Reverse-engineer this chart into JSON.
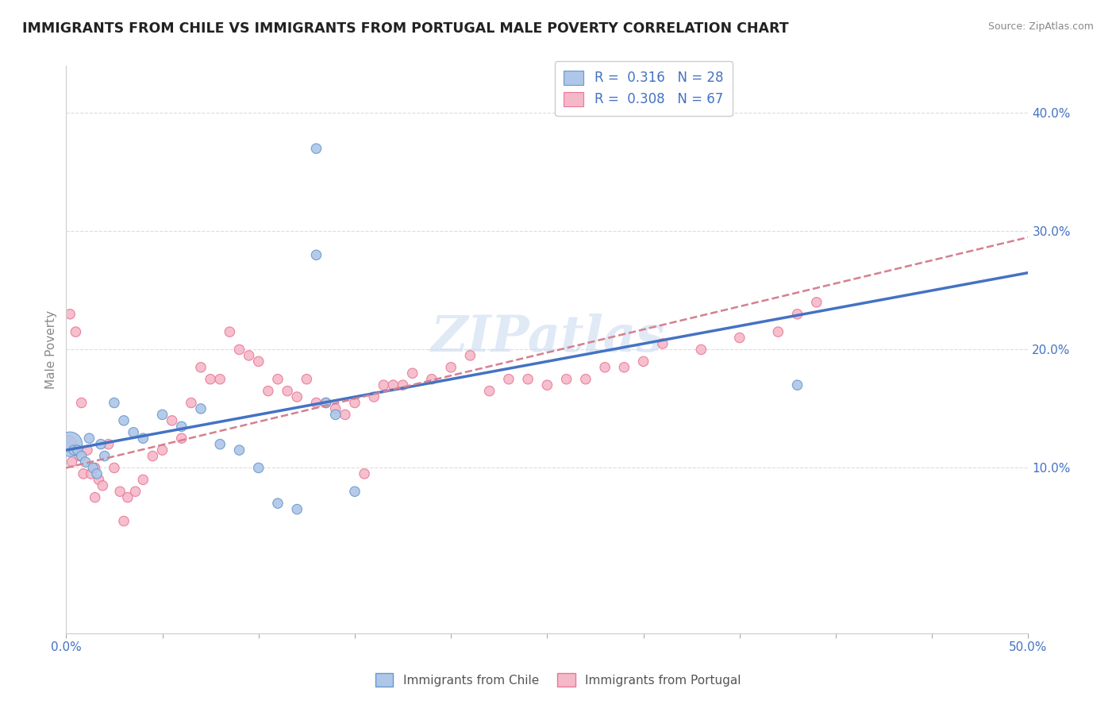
{
  "title": "IMMIGRANTS FROM CHILE VS IMMIGRANTS FROM PORTUGAL MALE POVERTY CORRELATION CHART",
  "source": "Source: ZipAtlas.com",
  "ylabel": "Male Poverty",
  "xlim": [
    0.0,
    0.5
  ],
  "ylim": [
    -0.04,
    0.44
  ],
  "yticks_right": [
    0.1,
    0.2,
    0.3,
    0.4
  ],
  "ytick_labels_right": [
    "10.0%",
    "20.0%",
    "30.0%",
    "40.0%"
  ],
  "grid_yticks": [
    0.1,
    0.2,
    0.3,
    0.4
  ],
  "chile_color": "#aec6e8",
  "chile_edge": "#6699cc",
  "portugal_color": "#f5b8c8",
  "portugal_edge": "#e87898",
  "trendline_chile_color": "#4472c4",
  "trendline_portugal_color": "#d48090",
  "R_chile": 0.316,
  "N_chile": 28,
  "R_portugal": 0.308,
  "N_portugal": 67,
  "watermark": "ZIPatlas",
  "chile_x": [
    0.002,
    0.004,
    0.006,
    0.008,
    0.01,
    0.012,
    0.014,
    0.016,
    0.018,
    0.02,
    0.025,
    0.03,
    0.035,
    0.04,
    0.05,
    0.06,
    0.07,
    0.08,
    0.09,
    0.1,
    0.11,
    0.12,
    0.13,
    0.13,
    0.135,
    0.14,
    0.15,
    0.38
  ],
  "chile_y": [
    0.12,
    0.115,
    0.115,
    0.11,
    0.105,
    0.125,
    0.1,
    0.095,
    0.12,
    0.11,
    0.155,
    0.14,
    0.13,
    0.125,
    0.145,
    0.135,
    0.15,
    0.12,
    0.115,
    0.1,
    0.07,
    0.065,
    0.28,
    0.37,
    0.155,
    0.145,
    0.08,
    0.17
  ],
  "chile_size": [
    500,
    80,
    80,
    80,
    80,
    80,
    80,
    80,
    80,
    80,
    80,
    80,
    80,
    80,
    80,
    80,
    80,
    80,
    80,
    80,
    80,
    80,
    80,
    80,
    80,
    80,
    80,
    80
  ],
  "portugal_x": [
    0.001,
    0.003,
    0.005,
    0.007,
    0.009,
    0.011,
    0.013,
    0.015,
    0.017,
    0.019,
    0.022,
    0.025,
    0.028,
    0.032,
    0.036,
    0.04,
    0.045,
    0.05,
    0.055,
    0.06,
    0.065,
    0.07,
    0.075,
    0.08,
    0.085,
    0.09,
    0.095,
    0.1,
    0.105,
    0.11,
    0.115,
    0.12,
    0.125,
    0.13,
    0.135,
    0.14,
    0.145,
    0.15,
    0.155,
    0.16,
    0.165,
    0.17,
    0.175,
    0.18,
    0.19,
    0.2,
    0.21,
    0.22,
    0.23,
    0.24,
    0.25,
    0.26,
    0.27,
    0.28,
    0.29,
    0.3,
    0.31,
    0.33,
    0.35,
    0.37,
    0.38,
    0.39,
    0.002,
    0.005,
    0.008,
    0.015,
    0.03
  ],
  "portugal_y": [
    0.12,
    0.105,
    0.115,
    0.11,
    0.095,
    0.115,
    0.095,
    0.1,
    0.09,
    0.085,
    0.12,
    0.1,
    0.08,
    0.075,
    0.08,
    0.09,
    0.11,
    0.115,
    0.14,
    0.125,
    0.155,
    0.185,
    0.175,
    0.175,
    0.215,
    0.2,
    0.195,
    0.19,
    0.165,
    0.175,
    0.165,
    0.16,
    0.175,
    0.155,
    0.155,
    0.15,
    0.145,
    0.155,
    0.095,
    0.16,
    0.17,
    0.17,
    0.17,
    0.18,
    0.175,
    0.185,
    0.195,
    0.165,
    0.175,
    0.175,
    0.17,
    0.175,
    0.175,
    0.185,
    0.185,
    0.19,
    0.205,
    0.2,
    0.21,
    0.215,
    0.23,
    0.24,
    0.23,
    0.215,
    0.155,
    0.075,
    0.055
  ],
  "portugal_size": [
    250,
    80,
    80,
    80,
    80,
    80,
    80,
    80,
    80,
    80,
    80,
    80,
    80,
    80,
    80,
    80,
    80,
    80,
    80,
    80,
    80,
    80,
    80,
    80,
    80,
    80,
    80,
    80,
    80,
    80,
    80,
    80,
    80,
    80,
    80,
    80,
    80,
    80,
    80,
    80,
    80,
    80,
    80,
    80,
    80,
    80,
    80,
    80,
    80,
    80,
    80,
    80,
    80,
    80,
    80,
    80,
    80,
    80,
    80,
    80,
    80,
    80,
    80,
    80,
    80,
    80,
    80
  ],
  "trendline_chile_x0": 0.0,
  "trendline_chile_y0": 0.115,
  "trendline_chile_x1": 0.5,
  "trendline_chile_y1": 0.265,
  "trendline_portugal_x0": 0.0,
  "trendline_portugal_y0": 0.1,
  "trendline_portugal_x1": 0.5,
  "trendline_portugal_y1": 0.295
}
